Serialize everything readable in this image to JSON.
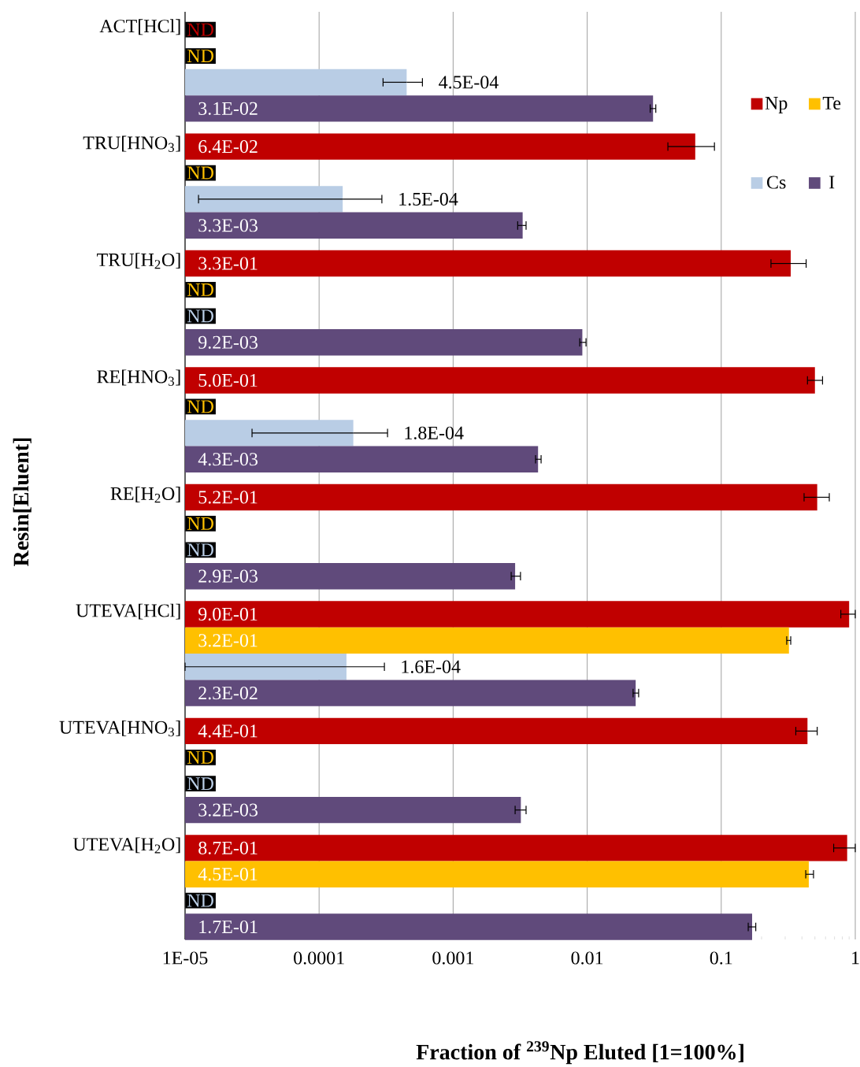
{
  "chart_data": {
    "type": "bar",
    "orientation": "horizontal",
    "xlabel": "**Fraction of $^{239}$Np Eluted [1=100%]**",
    "ylabel": "**Resin[Eluent]**",
    "categories": [
      "ACT[HCl]",
      "TRU[HNO$_{3}$]",
      "TRU[H$_{2}$O]",
      "RE[HNO$_{3}$]",
      "RE[H$_{2}$O]",
      "UTEVA[HCl]",
      "UTEVA[HNO$_{3}$]",
      "UTEVA[H$_{2}$O]"
    ],
    "series": [
      {
        "name": "Np",
        "color": "#c00000",
        "values": [
          null,
          0.064,
          0.33,
          0.5,
          0.52,
          0.9,
          0.44,
          0.87
        ],
        "errors": [
          null,
          [
            0.04,
            0.089
          ],
          [
            0.235,
            0.43
          ],
          [
            0.44,
            0.57
          ],
          [
            0.415,
            0.64
          ],
          [
            0.78,
            1.0
          ],
          [
            0.36,
            0.52
          ],
          [
            0.69,
            1.0
          ]
        ],
        "value_labels": [
          "ND",
          "6.4E-02",
          "3.3E-01",
          "5.0E-01",
          "5.2E-01",
          "9.0E-01",
          "4.4E-01",
          "8.7E-01"
        ]
      },
      {
        "name": "Te",
        "color": "#ffc000",
        "values": [
          null,
          null,
          null,
          null,
          null,
          0.32,
          null,
          0.45
        ],
        "errors": [
          null,
          null,
          null,
          null,
          null,
          [
            0.308,
            0.33
          ],
          null,
          [
            0.427,
            0.488
          ]
        ],
        "value_labels": [
          "ND",
          "ND",
          "ND",
          "ND",
          "ND",
          "3.2E-01",
          "ND",
          "4.5E-01"
        ]
      },
      {
        "name": "Cs",
        "color": "#b9cde5",
        "values": [
          0.00045,
          0.00015,
          null,
          0.00018,
          null,
          0.00016,
          null,
          null
        ],
        "errors": [
          [
            0.0003,
            0.00059
          ],
          [
            1.26e-05,
            0.000294
          ],
          null,
          [
            3.16e-05,
            0.000324
          ],
          null,
          [
            1e-05,
            0.000307
          ],
          null,
          null
        ],
        "value_labels": [
          "4.5E-04",
          "1.5E-04",
          "ND",
          "1.8E-04",
          "ND",
          "1.6E-04",
          "ND",
          "ND"
        ]
      },
      {
        "name": "I",
        "color": "#604a7b",
        "values": [
          0.031,
          0.0033,
          0.0092,
          0.0043,
          0.0029,
          0.023,
          0.0032,
          0.17
        ],
        "errors": [
          [
            0.0295,
            0.0325
          ],
          [
            0.00303,
            0.0035
          ],
          [
            0.0088,
            0.0098
          ],
          [
            0.00412,
            0.00453
          ],
          [
            0.00271,
            0.00318
          ],
          [
            0.022,
            0.0242
          ],
          [
            0.0029,
            0.0035
          ],
          [
            0.159,
            0.181
          ]
        ],
        "value_labels": [
          "3.1E-02",
          "3.3E-03",
          "9.2E-03",
          "4.3E-03",
          "2.9E-03",
          "2.3E-02",
          "3.2E-03",
          "1.7E-01"
        ]
      }
    ],
    "xlim": [
      1e-05,
      1
    ],
    "xticks": [
      {
        "value": 1e-05,
        "label": "1E-05"
      },
      0.0001,
      0.001,
      0.01,
      0.1,
      1
    ],
    "log": "x",
    "grid": "x",
    "legend": "top right"
  }
}
